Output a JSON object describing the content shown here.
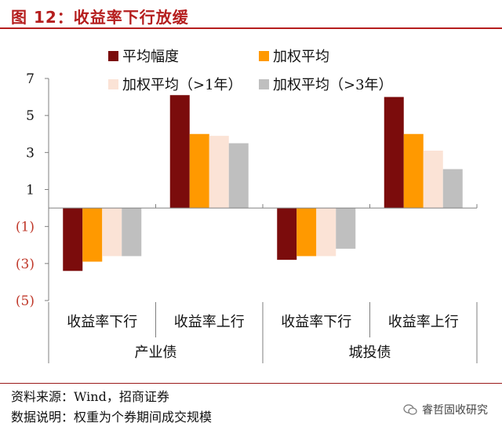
{
  "figure": {
    "title": "图  12：收益率下行放缓"
  },
  "footer": {
    "source": "资料来源：Wind，招商证券",
    "note": "数据说明：权重为个券期间成交规模",
    "watermark": "睿哲固收研究"
  },
  "chart_data": {
    "type": "bar",
    "ylim": [
      -5,
      7
    ],
    "yticks": [
      7,
      5,
      3,
      1,
      -1,
      -3,
      -5
    ],
    "ytick_labels": [
      "7",
      "5",
      "3",
      "1",
      "(1)",
      "(3)",
      "(5)"
    ],
    "groups": [
      {
        "label": "产业债",
        "categories": [
          "收益率下行",
          "收益率上行"
        ]
      },
      {
        "label": "城投债",
        "categories": [
          "收益率下行",
          "收益率上行"
        ]
      }
    ],
    "categories": [
      "收益率下行",
      "收益率上行",
      "收益率下行",
      "收益率上行"
    ],
    "series": [
      {
        "name": "平均幅度",
        "color": "#7b0c0c",
        "values": [
          -3.4,
          6.1,
          -2.8,
          6.0
        ]
      },
      {
        "name": "加权平均",
        "color": "#ff9900",
        "values": [
          -2.9,
          4.0,
          -2.6,
          4.0
        ]
      },
      {
        "name": "加权平均（>1年）",
        "color": "#fbe3d6",
        "values": [
          -2.6,
          3.9,
          -2.6,
          3.1
        ]
      },
      {
        "name": "加权平均（>3年）",
        "color": "#bfbfbf",
        "values": [
          -2.6,
          3.5,
          -2.2,
          2.1
        ]
      }
    ],
    "legend_position": "top",
    "grid": false
  }
}
